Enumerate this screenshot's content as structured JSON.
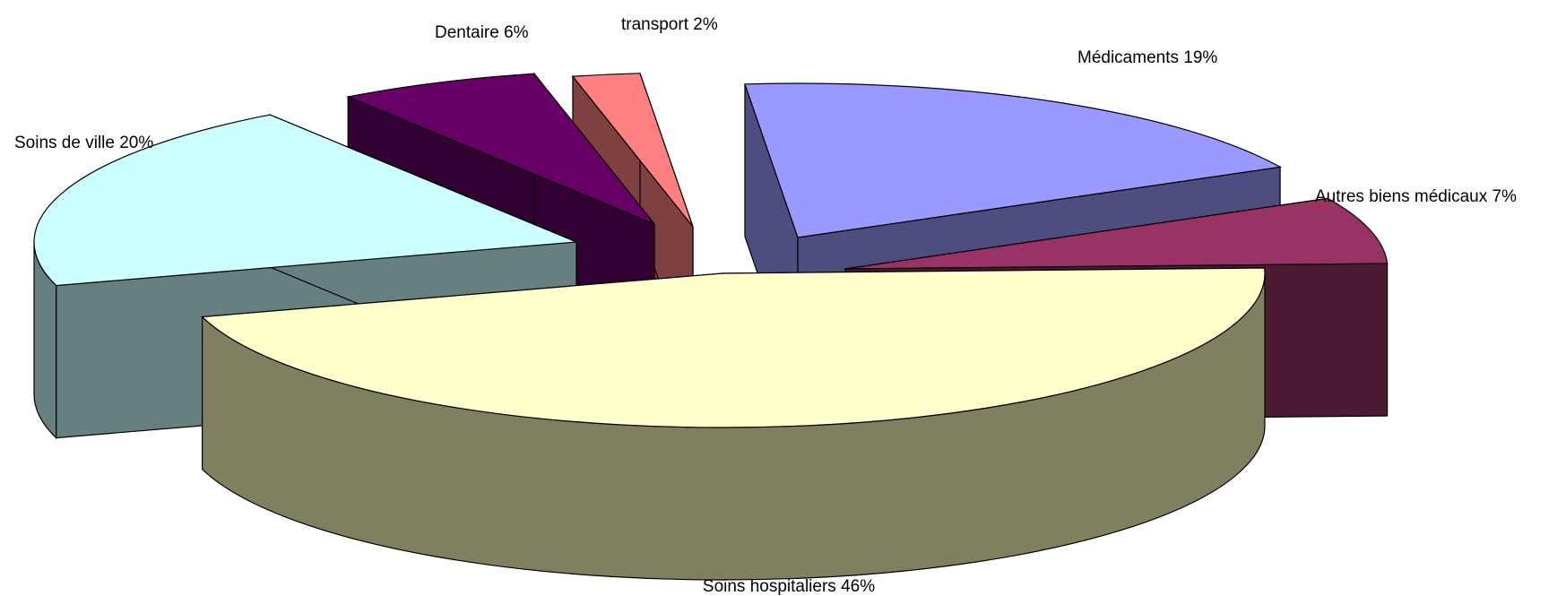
{
  "chart_data": {
    "type": "pie",
    "style": "3d-exploded",
    "title": "",
    "slices": [
      {
        "label": "Soins hospitaliers 46%",
        "category": "Soins hospitaliers",
        "value": 46,
        "color": "#ffffcc",
        "side_color": "#808060"
      },
      {
        "label": "Soins de ville 20%",
        "category": "Soins de ville",
        "value": 20,
        "color": "#ccffff",
        "side_color": "#668080"
      },
      {
        "label": "Dentaire 6%",
        "category": "Dentaire",
        "value": 6,
        "color": "#660066",
        "side_color": "#330033"
      },
      {
        "label": "transport 2%",
        "category": "transport",
        "value": 2,
        "color": "#ff8080",
        "side_color": "#804040"
      },
      {
        "label": "Médicaments 19%",
        "category": "Médicaments",
        "value": 19,
        "color": "#9999ff",
        "side_color": "#4d4d80"
      },
      {
        "label": "Autres biens médicaux 7%",
        "category": "Autres biens médicaux",
        "value": 7,
        "color": "#993366",
        "side_color": "#4d1a33"
      }
    ]
  }
}
